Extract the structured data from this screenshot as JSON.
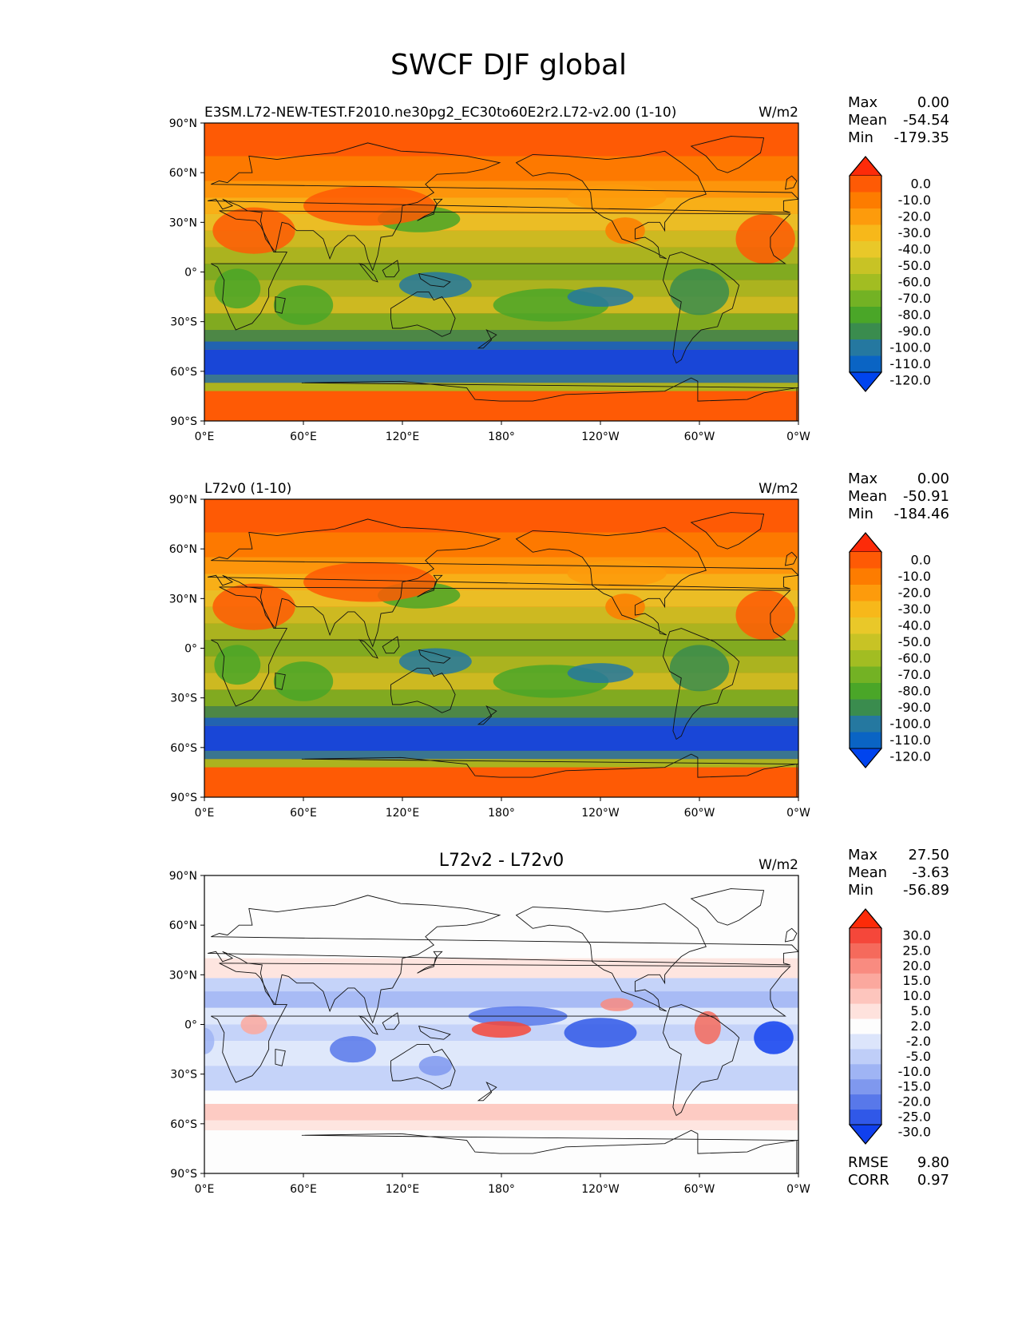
{
  "figure": {
    "title": "SWCF DJF global"
  },
  "chart_data": [
    {
      "type": "heatmap",
      "panel": "test",
      "title_left": "E3SM.L72-NEW-TEST.F2010.ne30pg2_EC30to60E2r2.L72-v2.00 (1-10)",
      "title_center": "",
      "units": "W/m2",
      "stats": [
        {
          "label": "Max",
          "value": "0.00"
        },
        {
          "label": "Mean",
          "value": "-54.54"
        },
        {
          "label": "Min",
          "value": "-179.35"
        }
      ],
      "colorbar_levels": [
        "0.0",
        "-10.0",
        "-20.0",
        "-30.0",
        "-40.0",
        "-50.0",
        "-60.0",
        "-70.0",
        "-80.0",
        "-90.0",
        "-100.0",
        "-110.0",
        "-120.0"
      ],
      "colorbar_colors": [
        "#fd2b09",
        "#fe5a05",
        "#fd7c00",
        "#fd9b0c",
        "#f7b81a",
        "#e9c829",
        "#c8c325",
        "#a2bd22",
        "#73b224",
        "#4aa628",
        "#3a8c4e",
        "#2578a0",
        "#0a64c4",
        "#0044ee"
      ],
      "lat_ticks": [
        "90°N",
        "60°N",
        "30°N",
        "0°",
        "30°S",
        "60°S",
        "90°S"
      ],
      "lon_ticks": [
        "0°E",
        "60°E",
        "120°E",
        "180°",
        "120°W",
        "60°W",
        "0°W"
      ]
    },
    {
      "type": "heatmap",
      "panel": "reference",
      "title_left": "L72v0 (1-10)",
      "title_center": "",
      "units": "W/m2",
      "stats": [
        {
          "label": "Max",
          "value": "0.00"
        },
        {
          "label": "Mean",
          "value": "-50.91"
        },
        {
          "label": "Min",
          "value": "-184.46"
        }
      ],
      "colorbar_levels": [
        "0.0",
        "-10.0",
        "-20.0",
        "-30.0",
        "-40.0",
        "-50.0",
        "-60.0",
        "-70.0",
        "-80.0",
        "-90.0",
        "-100.0",
        "-110.0",
        "-120.0"
      ],
      "colorbar_colors": [
        "#fd2b09",
        "#fe5a05",
        "#fd7c00",
        "#fd9b0c",
        "#f7b81a",
        "#e9c829",
        "#c8c325",
        "#a2bd22",
        "#73b224",
        "#4aa628",
        "#3a8c4e",
        "#2578a0",
        "#0a64c4",
        "#0044ee"
      ],
      "lat_ticks": [
        "90°N",
        "60°N",
        "30°N",
        "0°",
        "30°S",
        "60°S",
        "90°S"
      ],
      "lon_ticks": [
        "0°E",
        "60°E",
        "120°E",
        "180°",
        "120°W",
        "60°W",
        "0°W"
      ]
    },
    {
      "type": "heatmap",
      "panel": "difference",
      "title_left": "",
      "title_center": "L72v2 - L72v0",
      "units": "W/m2",
      "stats": [
        {
          "label": "Max",
          "value": "27.50"
        },
        {
          "label": "Mean",
          "value": "-3.63"
        },
        {
          "label": "Min",
          "value": "-56.89"
        }
      ],
      "colorbar_levels": [
        "30.0",
        "25.0",
        "20.0",
        "15.0",
        "10.0",
        "5.0",
        "2.0",
        "-2.0",
        "-5.0",
        "-10.0",
        "-15.0",
        "-20.0",
        "-25.0",
        "-30.0"
      ],
      "colorbar_colors": [
        "#fd2b09",
        "#f5473a",
        "#f56a5c",
        "#f98b80",
        "#fba89e",
        "#fdc5bd",
        "#fee2dd",
        "#fdfdfd",
        "#dce5fb",
        "#bfcef8",
        "#9fb4f4",
        "#7f98ee",
        "#5878ea",
        "#3058e8",
        "#1040ee"
      ],
      "lat_ticks": [
        "90°N",
        "60°N",
        "30°N",
        "0°",
        "30°S",
        "60°S",
        "90°S"
      ],
      "lon_ticks": [
        "0°E",
        "60°E",
        "120°E",
        "180°",
        "120°W",
        "60°W",
        "0°W"
      ],
      "metrics": [
        {
          "label": "RMSE",
          "value": "9.80"
        },
        {
          "label": "CORR",
          "value": "0.97"
        }
      ]
    }
  ]
}
